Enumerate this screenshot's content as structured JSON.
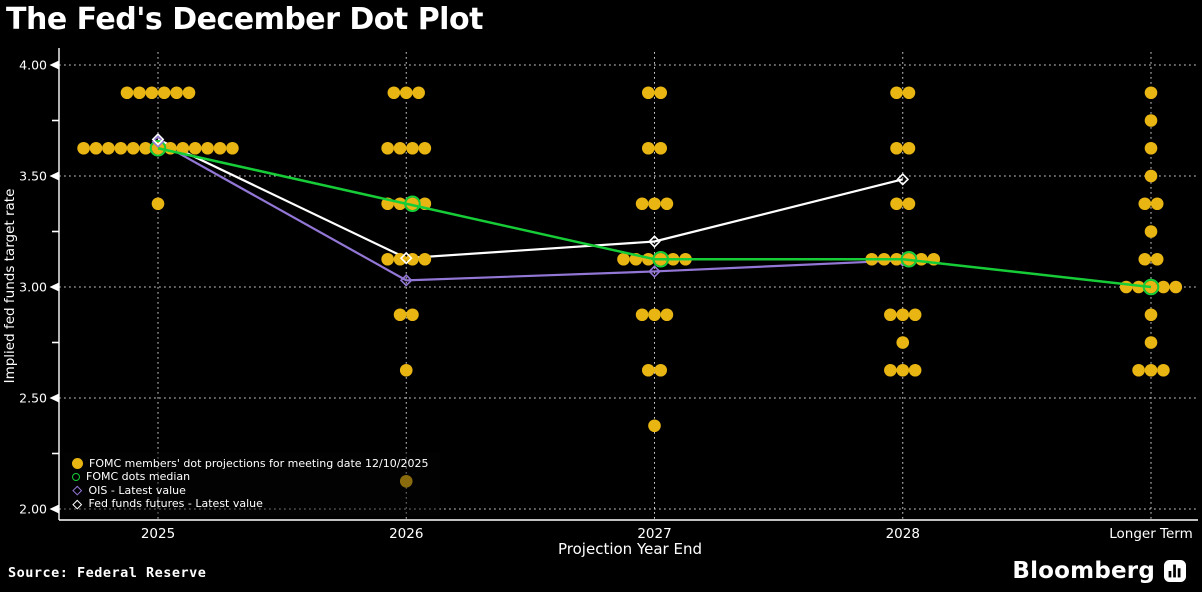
{
  "title": "The Fed's December Dot Plot",
  "footer": {
    "source": "Source: Federal Reserve",
    "brand": "Bloomberg"
  },
  "colors": {
    "dot": "#E8B513",
    "median": "#16CD38",
    "ois": "#9377D6",
    "futures": "#FFFFFF",
    "grid": "#C9C9C9",
    "text": "#FFFFFF",
    "bg": "#000000",
    "dimmed_dot": "#A8861F"
  },
  "legend": {
    "items": [
      {
        "label": "FOMC members' dot projections for meeting date 12/10/2025",
        "marker": "dot"
      },
      {
        "label": "FOMC dots median",
        "marker": "ring"
      },
      {
        "label": "OIS - Latest value",
        "marker": "diamond-ois"
      },
      {
        "label": "Fed funds futures - Latest value",
        "marker": "diamond-futures"
      }
    ]
  },
  "chart_data": {
    "type": "scatter",
    "title": "The Fed's December Dot Plot",
    "xlabel": "Projection Year End",
    "ylabel": "Implied fed funds target rate",
    "ylim": [
      2.0,
      4.0
    ],
    "yticks": [
      {
        "value": 2.0,
        "label": "2.00"
      },
      {
        "value": 2.5,
        "label": "2.50"
      },
      {
        "value": 3.0,
        "label": "3.00"
      },
      {
        "value": 3.5,
        "label": "3.50"
      },
      {
        "value": 4.0,
        "label": "4.00"
      }
    ],
    "minor_yticks": [
      2.25,
      2.75,
      3.25,
      3.75
    ],
    "categories": [
      "2025",
      "2026",
      "2027",
      "2028",
      "Longer Term"
    ],
    "grid": "dotted",
    "legend_position": "bottom-left",
    "dot_projections": [
      {
        "year": "2025",
        "median": 3.625,
        "dots": [
          {
            "rate": 3.875,
            "count": 6
          },
          {
            "rate": 3.625,
            "count": 13
          },
          {
            "rate": 3.375,
            "count": 1
          }
        ]
      },
      {
        "year": "2026",
        "median": 3.375,
        "dots": [
          {
            "rate": 3.875,
            "count": 3
          },
          {
            "rate": 3.625,
            "count": 4
          },
          {
            "rate": 3.375,
            "count": 4
          },
          {
            "rate": 3.125,
            "count": 4
          },
          {
            "rate": 2.875,
            "count": 2
          },
          {
            "rate": 2.625,
            "count": 1
          },
          {
            "rate": 2.125,
            "count": 1
          }
        ]
      },
      {
        "year": "2027",
        "median": 3.125,
        "dots": [
          {
            "rate": 3.875,
            "count": 2
          },
          {
            "rate": 3.625,
            "count": 2
          },
          {
            "rate": 3.375,
            "count": 3
          },
          {
            "rate": 3.125,
            "count": 6
          },
          {
            "rate": 2.875,
            "count": 3
          },
          {
            "rate": 2.625,
            "count": 2
          },
          {
            "rate": 2.375,
            "count": 1
          }
        ]
      },
      {
        "year": "2028",
        "median": 3.125,
        "dots": [
          {
            "rate": 3.875,
            "count": 2
          },
          {
            "rate": 3.625,
            "count": 2
          },
          {
            "rate": 3.375,
            "count": 2
          },
          {
            "rate": 3.125,
            "count": 6
          },
          {
            "rate": 2.875,
            "count": 3
          },
          {
            "rate": 2.75,
            "count": 1
          },
          {
            "rate": 2.625,
            "count": 3
          }
        ]
      },
      {
        "year": "Longer Term",
        "median": 3.0,
        "dots": [
          {
            "rate": 3.875,
            "count": 1
          },
          {
            "rate": 3.75,
            "count": 1
          },
          {
            "rate": 3.625,
            "count": 1
          },
          {
            "rate": 3.5,
            "count": 1
          },
          {
            "rate": 3.375,
            "count": 2
          },
          {
            "rate": 3.25,
            "count": 1
          },
          {
            "rate": 3.125,
            "count": 2
          },
          {
            "rate": 3.0,
            "count": 5
          },
          {
            "rate": 2.875,
            "count": 1
          },
          {
            "rate": 2.75,
            "count": 1
          },
          {
            "rate": 2.625,
            "count": 3
          }
        ]
      }
    ],
    "series": [
      {
        "name": "FOMC dots median",
        "key": "median",
        "marker": "open-circle",
        "x": [
          "2025",
          "2026",
          "2027",
          "2028",
          "Longer Term"
        ],
        "values": [
          3.625,
          3.375,
          3.125,
          3.125,
          3.0
        ]
      },
      {
        "name": "OIS - Latest value",
        "key": "ois",
        "marker": "open-diamond",
        "x": [
          "2025",
          "2026",
          "2027",
          "2028"
        ],
        "values": [
          3.655,
          3.03,
          3.07,
          3.12
        ],
        "last_marker_hidden_behind_dots": true
      },
      {
        "name": "Fed funds futures - Latest value",
        "key": "futures",
        "marker": "open-diamond",
        "x": [
          "2025",
          "2026",
          "2027",
          "2028"
        ],
        "values": [
          3.665,
          3.13,
          3.205,
          3.485
        ]
      }
    ]
  }
}
